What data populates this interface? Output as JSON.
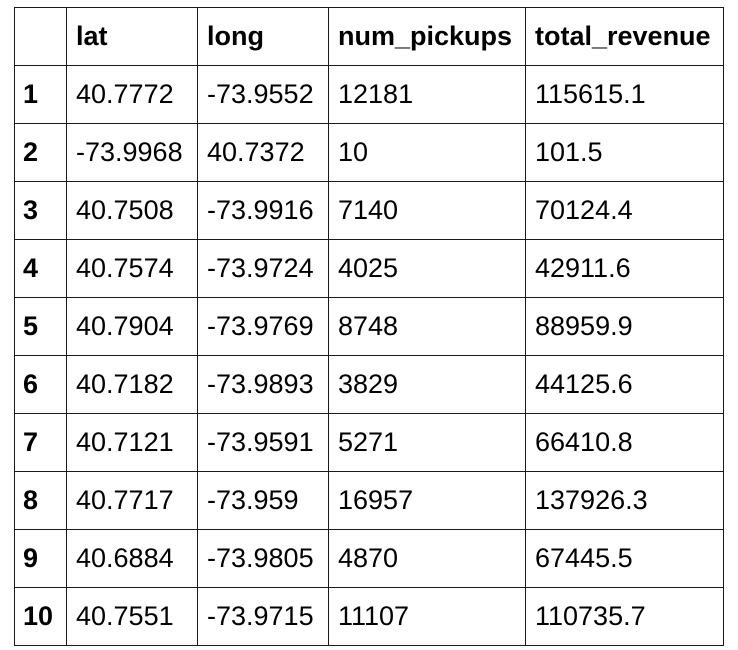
{
  "table": {
    "columns": [
      "",
      "lat",
      "long",
      "num_pickups",
      "total_revenue"
    ],
    "rows": [
      [
        "1",
        "40.7772",
        "-73.9552",
        "12181",
        "115615.1"
      ],
      [
        "2",
        "-73.9968",
        "40.7372",
        "10",
        "101.5"
      ],
      [
        "3",
        "40.7508",
        "-73.9916",
        "7140",
        "70124.4"
      ],
      [
        "4",
        "40.7574",
        "-73.9724",
        "4025",
        "42911.6"
      ],
      [
        "5",
        "40.7904",
        "-73.9769",
        "8748",
        "88959.9"
      ],
      [
        "6",
        "40.7182",
        "-73.9893",
        "3829",
        "44125.6"
      ],
      [
        "7",
        "40.7121",
        "-73.9591",
        "5271",
        "66410.8"
      ],
      [
        "8",
        "40.7717",
        "-73.959",
        "16957",
        "137926.3"
      ],
      [
        "9",
        "40.6884",
        "-73.9805",
        "4870",
        "67445.5"
      ],
      [
        "10",
        "40.7551",
        "-73.9715",
        "11107",
        "110735.7"
      ]
    ]
  }
}
